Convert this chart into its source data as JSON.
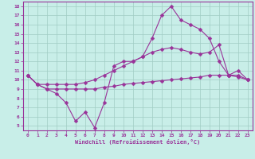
{
  "background_color": "#c8eee8",
  "grid_color": "#a0ccc4",
  "line_color": "#993399",
  "marker": "D",
  "marker_size": 2.5,
  "line_width": 0.8,
  "xlim": [
    -0.5,
    23.5
  ],
  "ylim": [
    4.5,
    18.5
  ],
  "xticks": [
    0,
    1,
    2,
    3,
    4,
    5,
    6,
    7,
    8,
    9,
    10,
    11,
    12,
    13,
    14,
    15,
    16,
    17,
    18,
    19,
    20,
    21,
    22,
    23
  ],
  "yticks": [
    5,
    6,
    7,
    8,
    9,
    10,
    11,
    12,
    13,
    14,
    15,
    16,
    17,
    18
  ],
  "xlabel": "Windchill (Refroidissement éolien,°C)",
  "line1_x": [
    0,
    1,
    2,
    3,
    4,
    5,
    6,
    7,
    8,
    9,
    10,
    11,
    12,
    13,
    14,
    15,
    16,
    17,
    18,
    19,
    20,
    21,
    22,
    23
  ],
  "line1_y": [
    10.5,
    9.5,
    9.0,
    8.5,
    7.5,
    5.5,
    6.5,
    4.8,
    7.5,
    11.5,
    12.0,
    12.0,
    12.5,
    14.5,
    17.0,
    18.0,
    16.5,
    16.0,
    15.5,
    14.5,
    12.0,
    10.5,
    11.0,
    10.0
  ],
  "line2_x": [
    0,
    1,
    2,
    3,
    4,
    5,
    6,
    7,
    8,
    9,
    10,
    11,
    12,
    13,
    14,
    15,
    16,
    17,
    18,
    19,
    20,
    21,
    22,
    23
  ],
  "line2_y": [
    10.5,
    9.5,
    9.0,
    9.0,
    9.0,
    9.0,
    9.0,
    9.0,
    9.2,
    9.3,
    9.5,
    9.6,
    9.7,
    9.8,
    9.9,
    10.0,
    10.1,
    10.2,
    10.3,
    10.5,
    10.5,
    10.5,
    10.3,
    10.0
  ],
  "line3_x": [
    0,
    1,
    2,
    3,
    4,
    5,
    6,
    7,
    8,
    9,
    10,
    11,
    12,
    13,
    14,
    15,
    16,
    17,
    18,
    19,
    20,
    21,
    22,
    23
  ],
  "line3_y": [
    10.5,
    9.5,
    9.5,
    9.5,
    9.5,
    9.5,
    9.7,
    10.0,
    10.5,
    11.0,
    11.5,
    12.0,
    12.5,
    13.0,
    13.3,
    13.5,
    13.3,
    13.0,
    12.8,
    13.0,
    13.8,
    10.5,
    10.5,
    10.0
  ]
}
